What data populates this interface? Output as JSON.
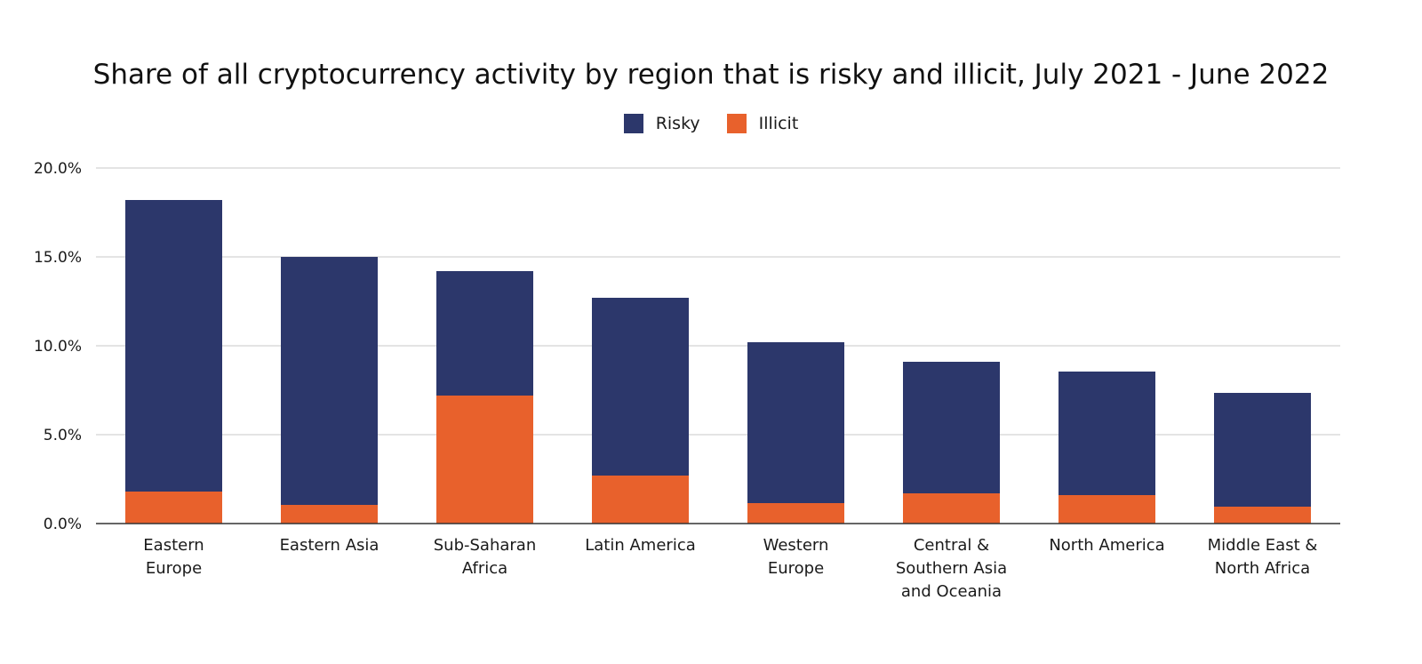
{
  "chart_data": {
    "type": "bar",
    "stacked": true,
    "title": "Share of all cryptocurrency activity by region that is risky and illicit, July 2021 - June 2022",
    "xlabel": "",
    "ylabel": "",
    "ylim": [
      0,
      20
    ],
    "yticks": [
      "0.0%",
      "5.0%",
      "10.0%",
      "15.0%",
      "20.0%"
    ],
    "ytick_values": [
      0,
      5,
      10,
      15,
      20
    ],
    "grid": true,
    "legend_position": "top-center",
    "categories": [
      [
        "Eastern",
        "Europe"
      ],
      [
        "Eastern Asia"
      ],
      [
        "Sub-Saharan",
        "Africa"
      ],
      [
        "Latin America"
      ],
      [
        "Western",
        "Europe"
      ],
      [
        "Central &",
        "Southern Asia",
        "and Oceania"
      ],
      [
        "North America"
      ],
      [
        "Middle East &",
        "North Africa"
      ]
    ],
    "series": [
      {
        "name": "Illicit",
        "color": "#e8612c",
        "values": [
          1.8,
          1.05,
          7.2,
          2.7,
          1.15,
          1.7,
          1.6,
          0.95
        ]
      },
      {
        "name": "Risky",
        "color": "#2c376b",
        "values": [
          16.4,
          13.95,
          7.0,
          10.0,
          9.05,
          7.4,
          6.95,
          6.4
        ]
      }
    ],
    "legend_order": [
      "Risky",
      "Illicit"
    ]
  }
}
